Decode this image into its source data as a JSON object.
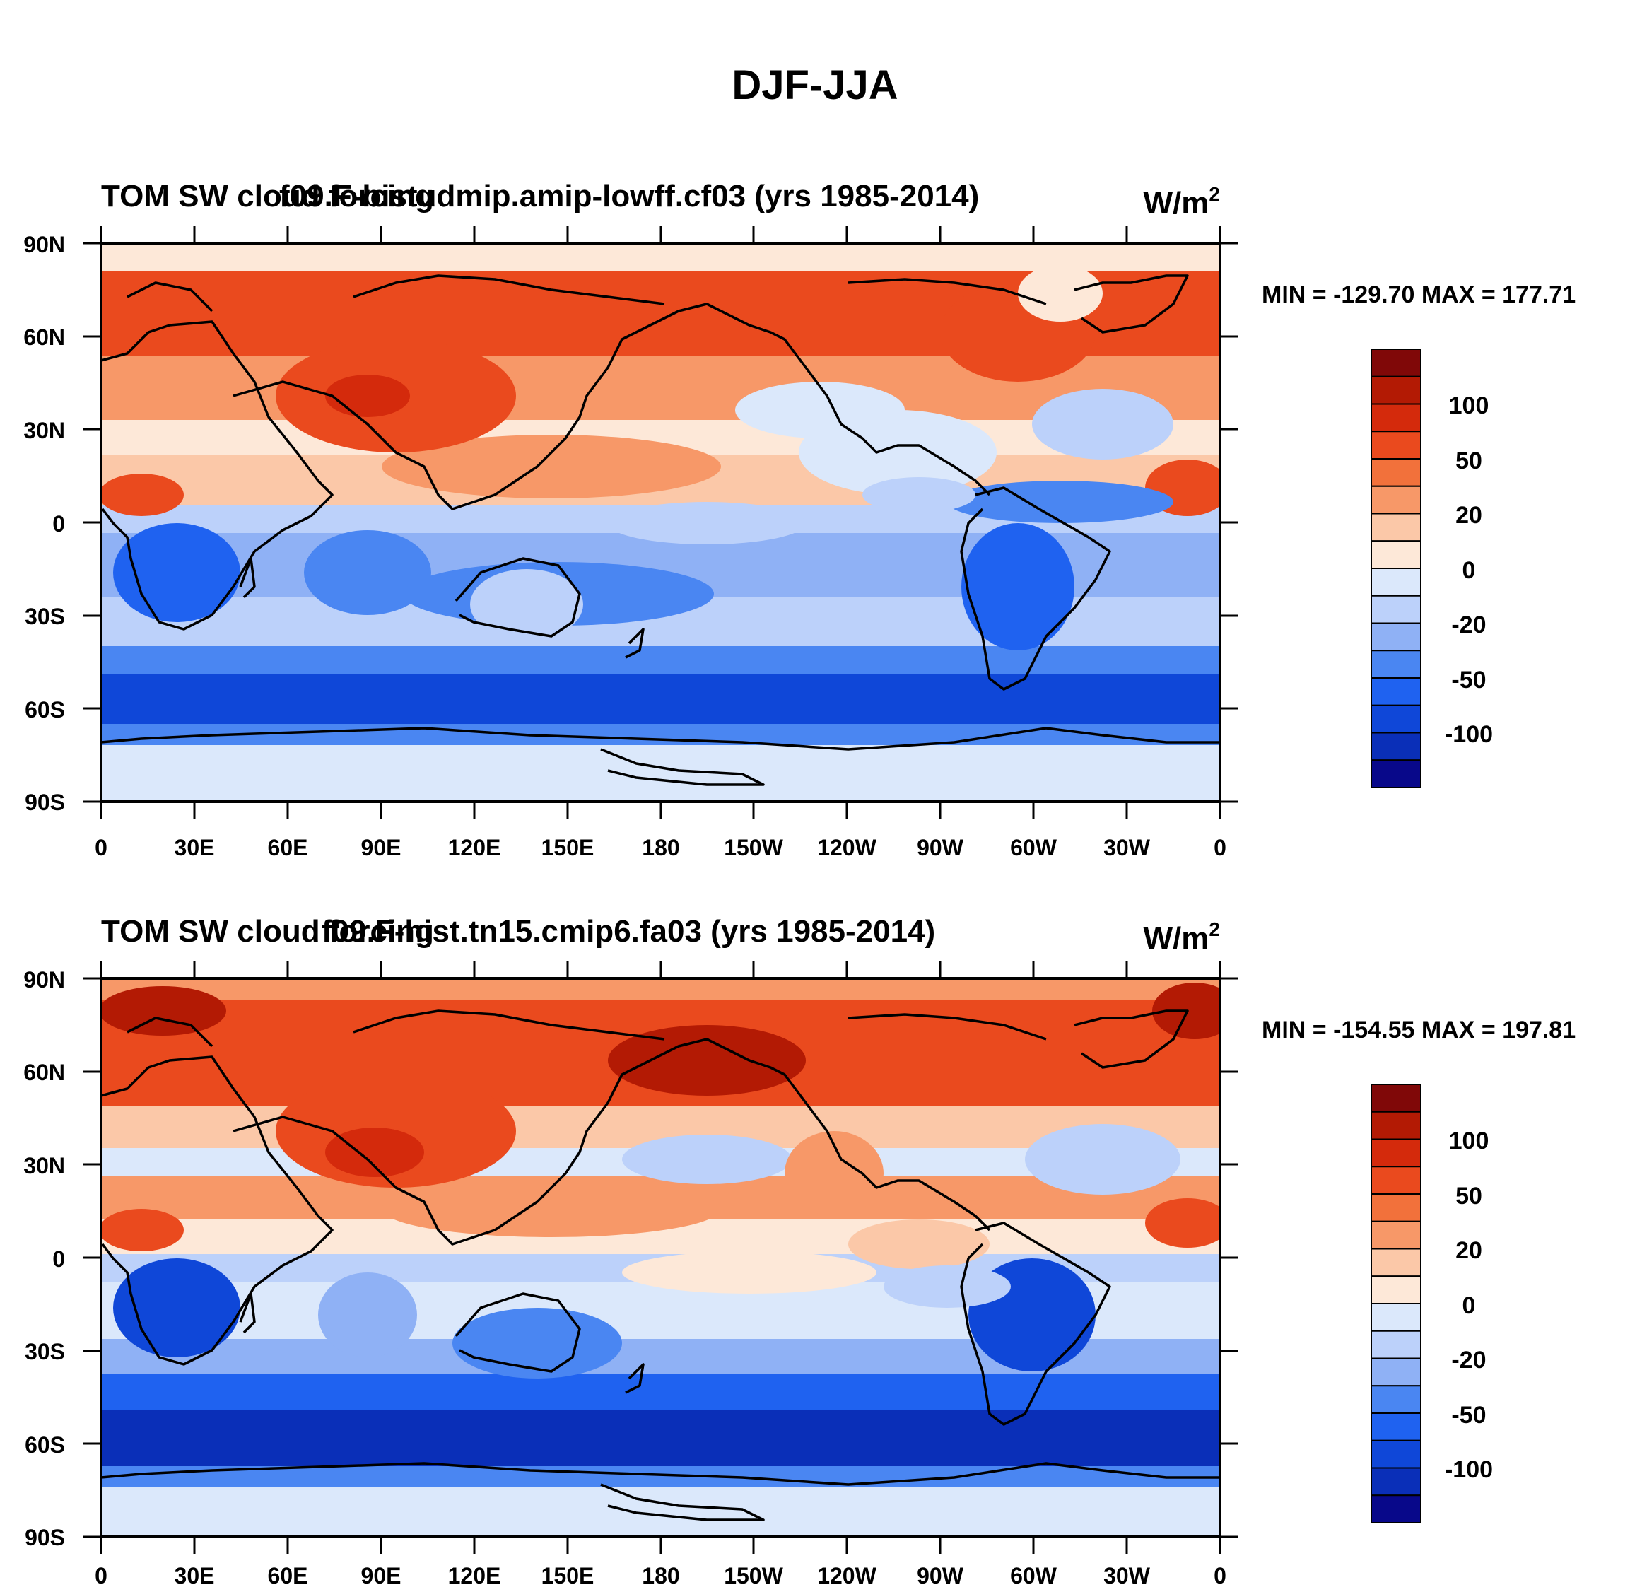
{
  "figure_title": "DJF-JJA",
  "panels": [
    {
      "case_label": "f09.F-bistudmip.amip-lowff.cf03 (yrs 1985-2014)",
      "variable_label": "TOM SW cloud forcing",
      "units_base": "W/m",
      "units_exp": "2",
      "stats": "MIN = -129.70 MAX = 177.71"
    },
    {
      "case_label": "f09.F-hist.tn15.cmip6.fa03 (yrs 1985-2014)",
      "variable_label": "TOM SW cloud forcing",
      "units_base": "W/m",
      "units_exp": "2",
      "stats": "MIN = -154.55 MAX = 197.81"
    }
  ],
  "axes": {
    "lat_labels": [
      "90N",
      "60N",
      "30N",
      "0",
      "30S",
      "60S",
      "90S"
    ],
    "lon_labels": [
      "0",
      "30E",
      "60E",
      "90E",
      "120E",
      "150E",
      "180",
      "150W",
      "120W",
      "90W",
      "60W",
      "30W",
      "0"
    ]
  },
  "colorbar": {
    "colors": [
      "#08088a",
      "#0a2fb8",
      "#0f47d8",
      "#1f62f0",
      "#4a86f2",
      "#8fb1f5",
      "#bcd1fa",
      "#dbe8fb",
      "#fde8d8",
      "#fbc8a8",
      "#f79868",
      "#f2713b",
      "#ea4a1e",
      "#d42a0c",
      "#b31a04",
      "#800808"
    ],
    "labels": [
      "100",
      "50",
      "20",
      "0",
      "-20",
      "-50",
      "-100"
    ]
  }
}
